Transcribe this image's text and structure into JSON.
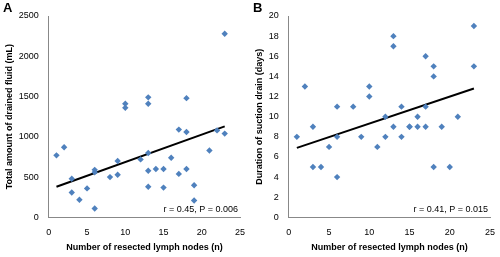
{
  "chart_data": [
    {
      "type": "scatter",
      "panel": "A",
      "x_label": "Number of resected lymph nodes (n)",
      "y_label": "Total amount of drained fluid (mL)",
      "annotation": "r = 0.45, P = 0.006",
      "x": [
        1,
        2,
        3,
        3,
        4,
        5,
        6,
        6,
        6,
        8,
        9,
        9,
        10,
        10,
        12,
        13,
        13,
        13,
        13,
        13,
        14,
        15,
        15,
        16,
        17,
        17,
        18,
        18,
        18,
        19,
        19,
        21,
        22,
        23,
        23
      ],
      "values": [
        770,
        870,
        480,
        310,
        220,
        360,
        560,
        590,
        110,
        500,
        530,
        700,
        1410,
        1360,
        720,
        800,
        1490,
        1410,
        580,
        380,
        600,
        370,
        600,
        740,
        540,
        1090,
        1480,
        600,
        1060,
        400,
        210,
        830,
        1080,
        2280,
        1040
      ],
      "color": "#4f81bd",
      "marker": "diamond",
      "trend": {
        "x": [
          1,
          23
        ],
        "values": [
          380,
          1130
        ],
        "color": "#000000"
      },
      "xlim": [
        0,
        25
      ],
      "xticks": [
        0,
        5,
        10,
        15,
        20,
        25
      ],
      "ylim": [
        0,
        2500
      ],
      "yticks": [
        0,
        500,
        1000,
        1500,
        2000,
        2500
      ],
      "grid": false
    },
    {
      "type": "scatter",
      "panel": "B",
      "x_label": "Number of resected lymph nodes (n)",
      "y_label": "Duration of suction drain (days)",
      "annotation": "r = 0.41, P = 0.015",
      "x": [
        1,
        2,
        3,
        3,
        4,
        5,
        6,
        6,
        6,
        8,
        9,
        10,
        10,
        11,
        12,
        12,
        13,
        13,
        13,
        14,
        14,
        15,
        15,
        16,
        16,
        17,
        17,
        17,
        18,
        18,
        18,
        19,
        20,
        21,
        23,
        23
      ],
      "values": [
        8,
        13,
        5,
        9,
        5,
        7,
        4,
        11,
        8,
        11,
        8,
        13,
        12,
        7,
        8,
        10,
        18,
        17,
        9,
        11,
        8,
        9,
        9,
        10,
        9,
        16,
        9,
        11,
        15,
        5,
        14,
        9,
        5,
        10,
        19,
        15
      ],
      "color": "#4f81bd",
      "marker": "diamond",
      "trend": {
        "x": [
          1,
          23
        ],
        "values": [
          6.9,
          12.8
        ],
        "color": "#000000"
      },
      "xlim": [
        0,
        25
      ],
      "xticks": [
        0,
        5,
        10,
        15,
        20,
        25
      ],
      "ylim": [
        0,
        20
      ],
      "yticks": [
        0,
        2,
        4,
        6,
        8,
        10,
        12,
        14,
        16,
        18,
        20
      ],
      "grid": false
    }
  ]
}
